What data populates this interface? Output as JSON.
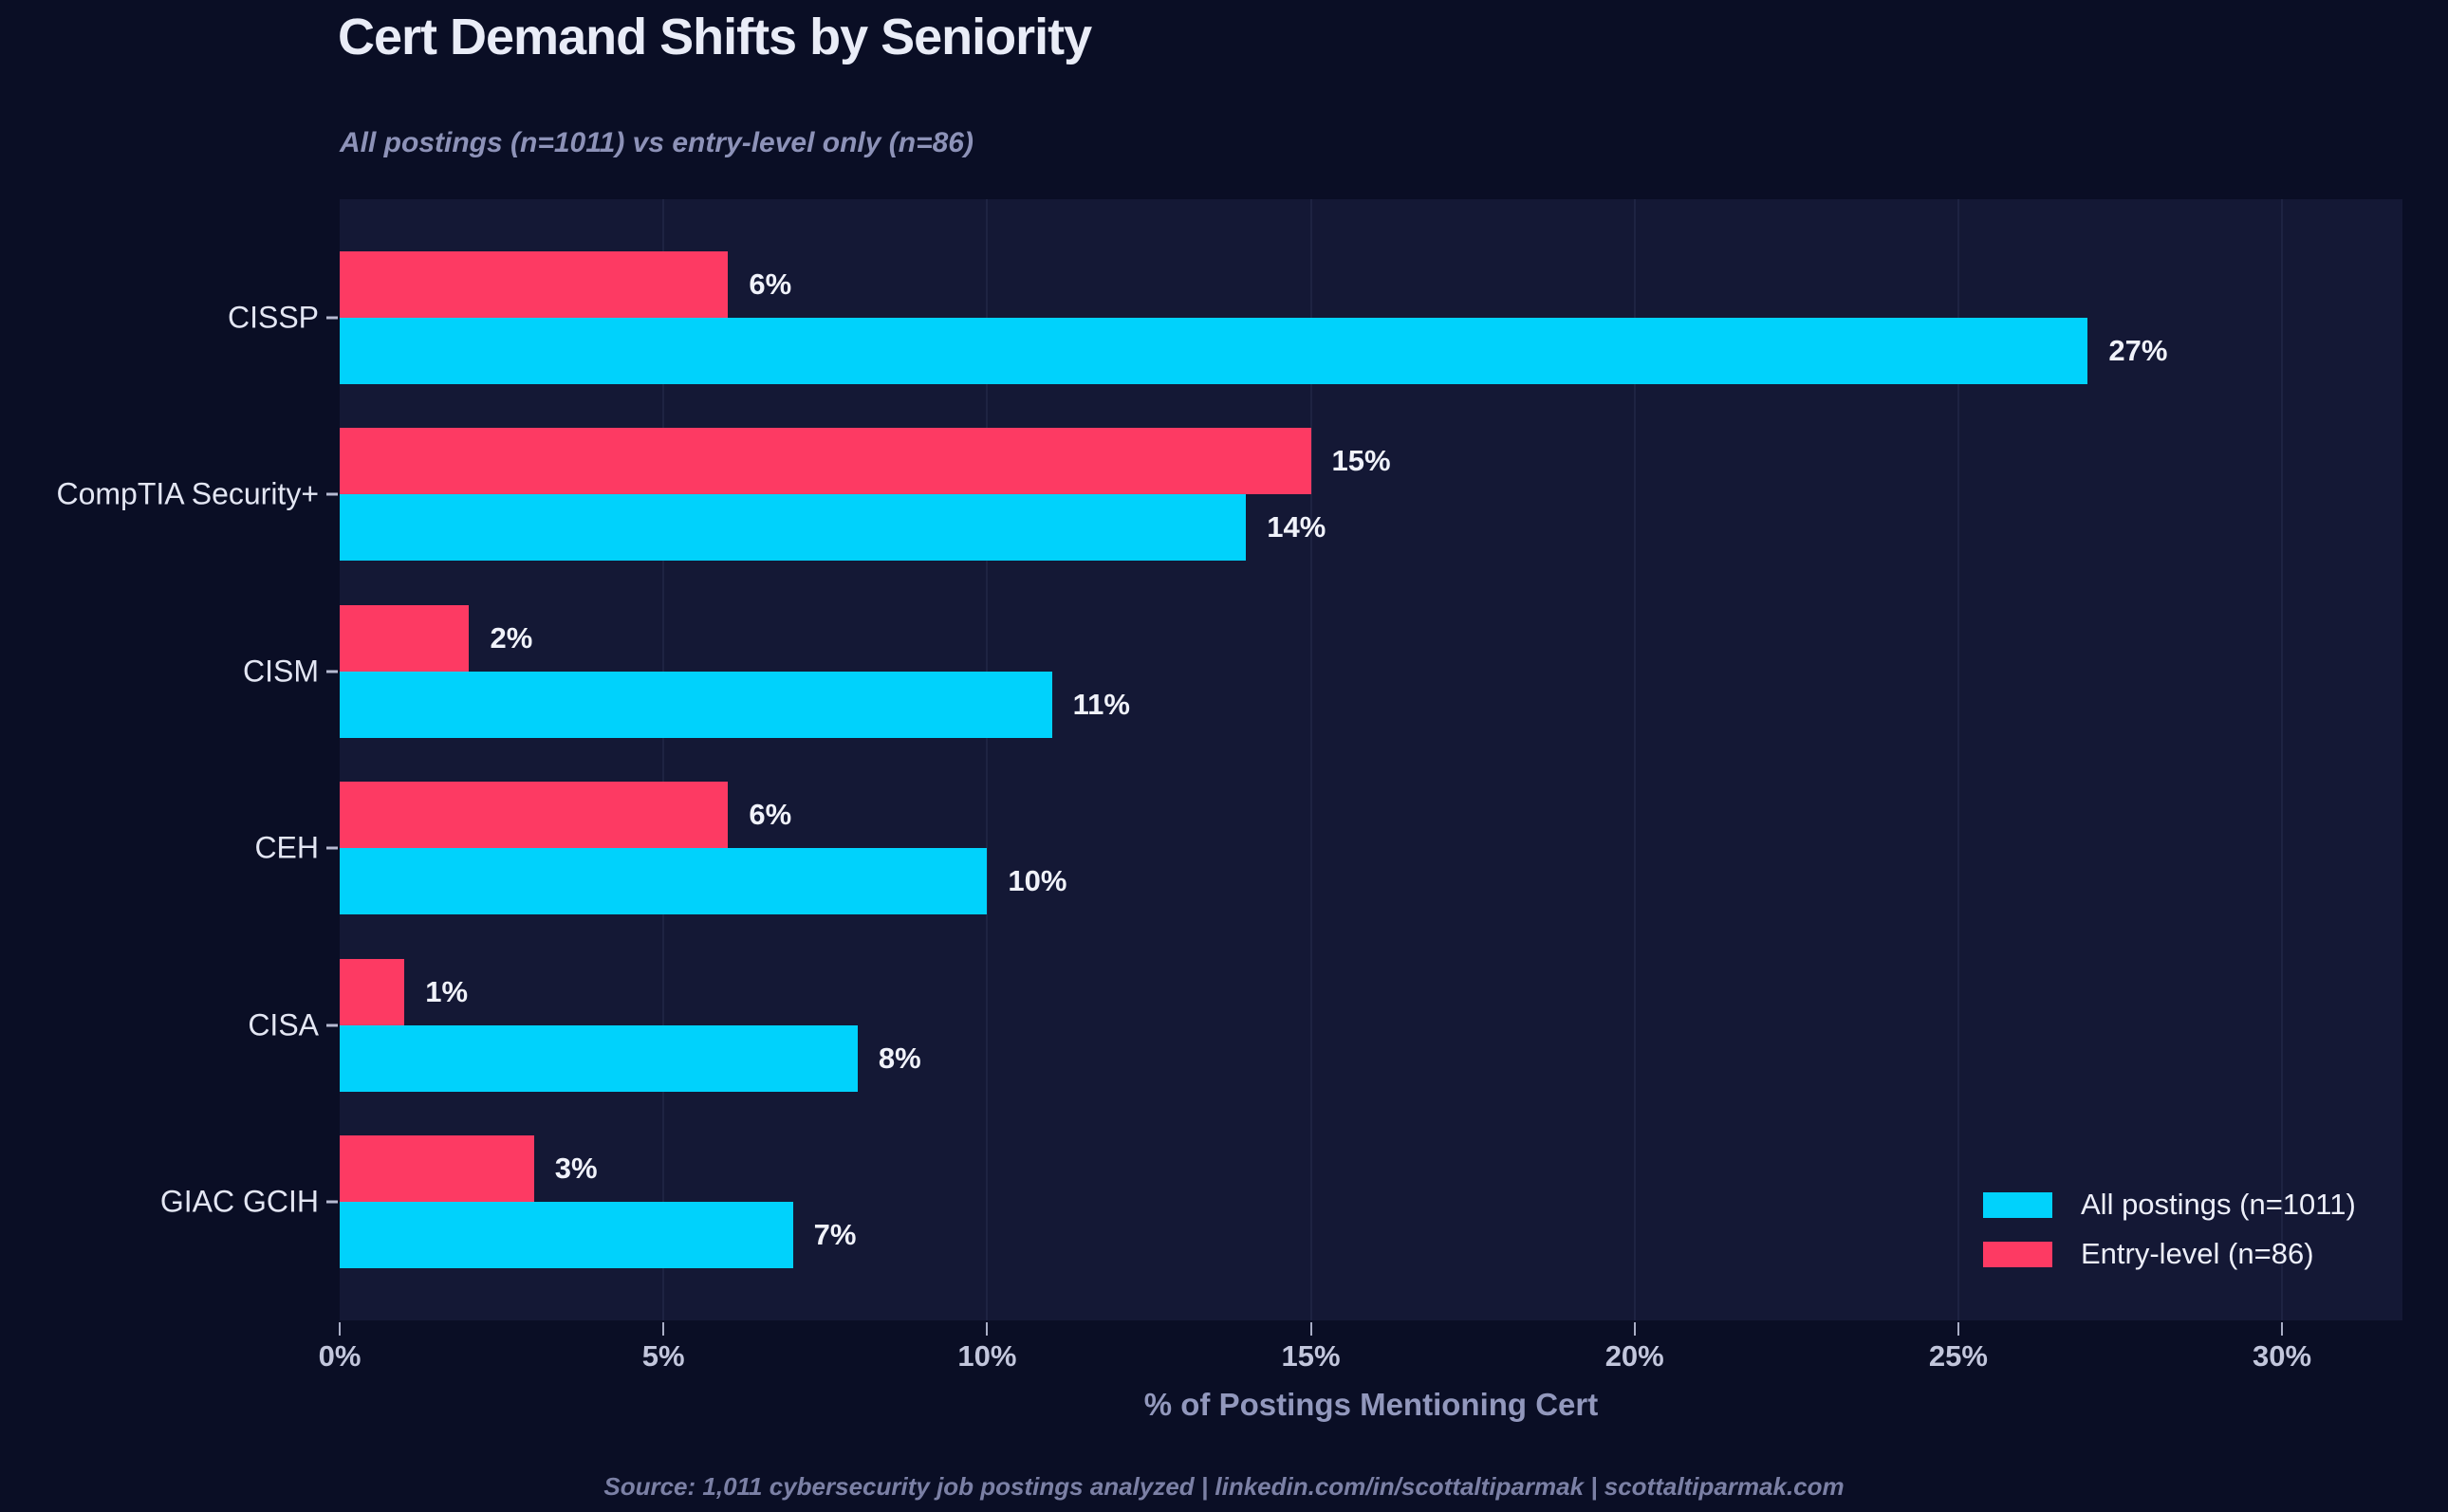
{
  "header": {
    "title": "Cert Demand Shifts by Seniority",
    "subtitle": "All postings (n=1011) vs entry-level only (n=86)"
  },
  "axis": {
    "xlabel": "% of Postings Mentioning Cert"
  },
  "footer": {
    "text": "Source: 1,011 cybersecurity job postings analyzed  |  linkedin.com/in/scottaltiparmak  |  scottaltiparmak.com"
  },
  "colors": {
    "figure_background": "#0a0e25",
    "plot_background": "#141835",
    "gridline": "#1e2342",
    "all_postings_bar": "#00d2fc",
    "entry_level_bar": "#fd3a63",
    "value_label": "#f0f2fa",
    "title_text": "#e9ecf7",
    "muted_text": "#8d92b8"
  },
  "chart_data": {
    "type": "bar",
    "orientation": "horizontal",
    "title": "Cert Demand Shifts by Seniority",
    "subtitle": "All postings (n=1011) vs entry-level only (n=86)",
    "xlabel": "% of Postings Mentioning Cert",
    "categories": [
      "CISSP",
      "CompTIA Security+",
      "CISM",
      "CEH",
      "CISA",
      "GIAC GCIH"
    ],
    "series": [
      {
        "name": "All postings (n=1011)",
        "color": "#00d2fc",
        "values": [
          27,
          14,
          11,
          10,
          8,
          7
        ],
        "labels": [
          "27%",
          "14%",
          "11%",
          "10%",
          "8%",
          "7%"
        ]
      },
      {
        "name": "Entry-level (n=86)",
        "color": "#fd3a63",
        "values": [
          6,
          15,
          2,
          6,
          1,
          3
        ],
        "labels": [
          "6%",
          "15%",
          "2%",
          "6%",
          "1%",
          "3%"
        ]
      }
    ],
    "bar_order_top_to_bottom": [
      "Entry-level (n=86)",
      "All postings (n=1011)"
    ],
    "xticks": [
      "0%",
      "5%",
      "10%",
      "15%",
      "20%",
      "25%",
      "30%"
    ],
    "xtick_values": [
      0,
      5,
      10,
      15,
      20,
      25,
      30
    ],
    "xlim": [
      0,
      31.86
    ],
    "grid": "vertical",
    "legend_position": "lower right"
  }
}
